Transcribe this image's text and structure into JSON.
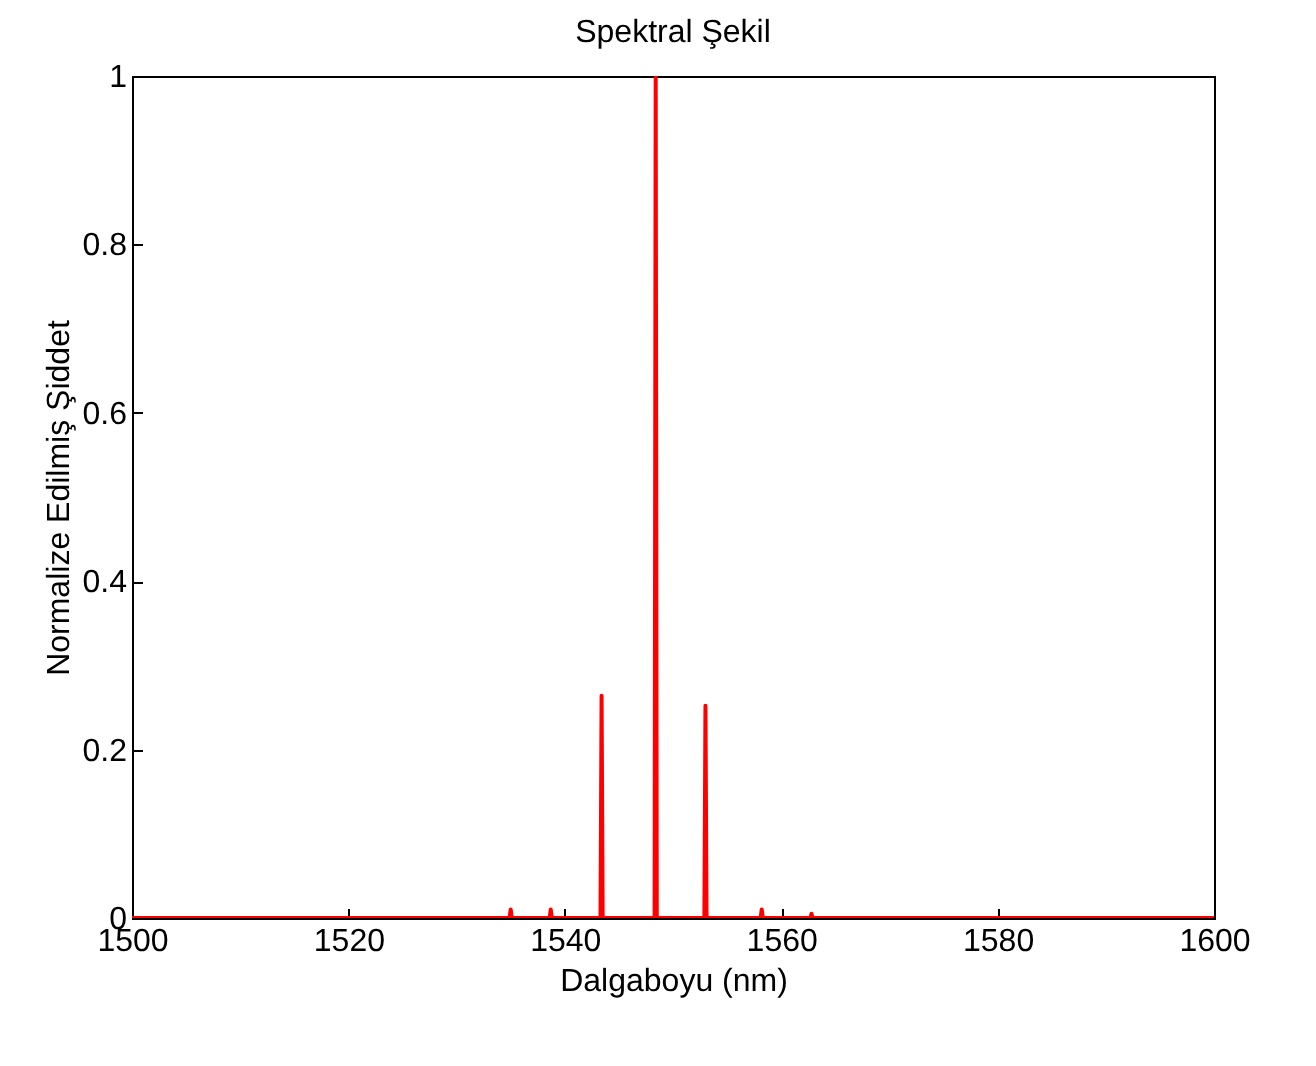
{
  "chart_data": {
    "type": "line",
    "title": "Spektral Şekil",
    "xlabel": "Dalgaboyu (nm)",
    "ylabel": "Normalize Edilmiş Şiddet",
    "x": [
      1500,
      1534.9,
      1535.0,
      1535.1,
      1538.6,
      1538.7,
      1538.8,
      1543.3,
      1543.4,
      1543.5,
      1548.3,
      1548.4,
      1548.5,
      1552.9,
      1553.0,
      1553.1,
      1558.1,
      1558.2,
      1558.3,
      1562.7,
      1562.8,
      1562.9,
      1600
    ],
    "series": [
      {
        "color": "#ff0000",
        "values": [
          0,
          0,
          0.01,
          0,
          0,
          0.01,
          0,
          0,
          0.264,
          0,
          0,
          1,
          0,
          0,
          0.252,
          0,
          0,
          0.01,
          0,
          0,
          0.005,
          0,
          0
        ]
      }
    ],
    "xlim": [
      1500,
      1600
    ],
    "xticks": [
      1500,
      1520,
      1540,
      1560,
      1580,
      1600
    ],
    "ylim": [
      0,
      1
    ],
    "yticks": [
      0,
      0.2,
      0.4,
      0.6,
      0.8,
      1
    ],
    "grid": false,
    "marker": "none",
    "line_style": "solid"
  }
}
